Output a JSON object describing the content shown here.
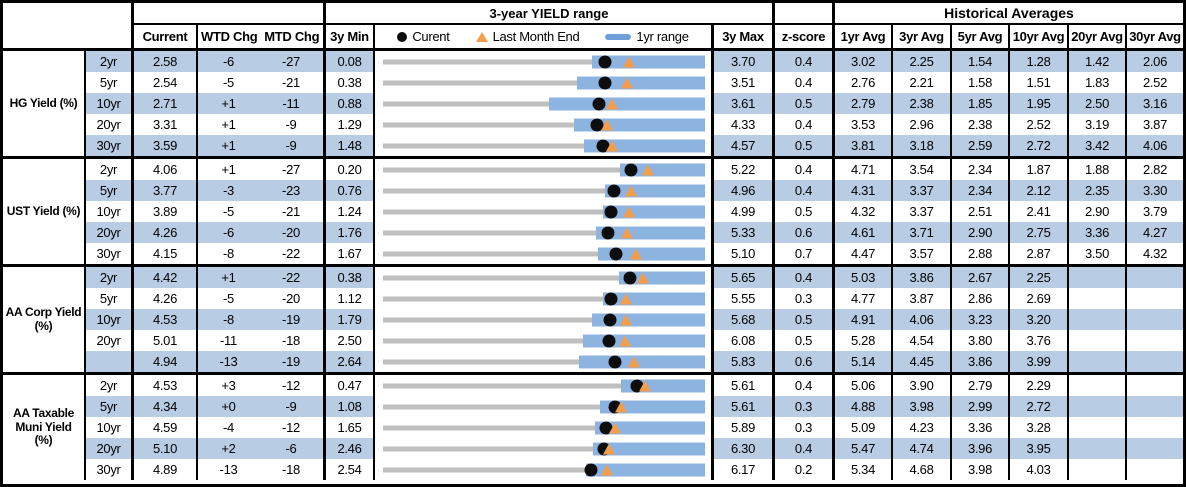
{
  "colors": {
    "stripe": "#b8cce4",
    "range_bar": "#8db3e0",
    "range_line_gray": "#bfbfbf",
    "marker_orange": "#f49d4a",
    "legend_dash_blue": "#6f9fd8",
    "marker_black": "#0d0d0d"
  },
  "header": {
    "top": {
      "yield_range": "3-year YIELD range",
      "historical_averages": "Historical Averages"
    },
    "cols": {
      "current": "Current",
      "wtd": "WTD Chg",
      "mtd": "MTD Chg",
      "min": "3y Min",
      "max": "3y Max",
      "zscore": "z-score",
      "avgs": [
        "1yr Avg",
        "3yr Avg",
        "5yr Avg",
        "10yr Avg",
        "20yr Avg",
        "30yr Avg"
      ]
    },
    "legend": {
      "current": "Curent",
      "last_month_end": "Last Month End",
      "range_1yr": "1yr range"
    }
  },
  "sections": [
    {
      "label": "HG Yield (%)",
      "rows": [
        {
          "tenor": "2yr",
          "current": "2.58",
          "wtd": "-6",
          "mtd": "-27",
          "min": "0.08",
          "max": "3.70",
          "z": "0.4",
          "avgs": [
            "3.02",
            "2.25",
            "1.54",
            "1.28",
            "1.42",
            "2.06"
          ],
          "lme": 2.85,
          "r1y_low": 2.43
        },
        {
          "tenor": "5yr",
          "current": "2.54",
          "wtd": "-5",
          "mtd": "-21",
          "min": "0.38",
          "max": "3.51",
          "z": "0.4",
          "avgs": [
            "2.76",
            "2.21",
            "1.58",
            "1.51",
            "1.83",
            "2.52"
          ],
          "lme": 2.75,
          "r1y_low": 2.27
        },
        {
          "tenor": "10yr",
          "current": "2.71",
          "wtd": "+1",
          "mtd": "-11",
          "min": "0.88",
          "max": "3.61",
          "z": "0.5",
          "avgs": [
            "2.79",
            "2.38",
            "1.85",
            "1.95",
            "2.50",
            "3.16"
          ],
          "lme": 2.82,
          "r1y_low": 2.29
        },
        {
          "tenor": "20yr",
          "current": "3.31",
          "wtd": "+1",
          "mtd": "-9",
          "min": "1.29",
          "max": "4.33",
          "z": "0.4",
          "avgs": [
            "3.53",
            "2.96",
            "2.38",
            "2.52",
            "3.19",
            "3.87"
          ],
          "lme": 3.4,
          "r1y_low": 3.09
        },
        {
          "tenor": "30yr",
          "current": "3.59",
          "wtd": "+1",
          "mtd": "-9",
          "min": "1.48",
          "max": "4.57",
          "z": "0.5",
          "avgs": [
            "3.81",
            "3.18",
            "2.59",
            "2.72",
            "3.42",
            "4.06"
          ],
          "lme": 3.68,
          "r1y_low": 3.41
        }
      ]
    },
    {
      "label": "UST Yield (%)",
      "rows": [
        {
          "tenor": "2yr",
          "current": "4.06",
          "wtd": "+1",
          "mtd": "-27",
          "min": "0.20",
          "max": "5.22",
          "z": "0.4",
          "avgs": [
            "4.71",
            "3.54",
            "2.34",
            "1.87",
            "1.88",
            "2.82"
          ],
          "lme": 4.33,
          "r1y_low": 3.89
        },
        {
          "tenor": "5yr",
          "current": "3.77",
          "wtd": "-3",
          "mtd": "-23",
          "min": "0.76",
          "max": "4.96",
          "z": "0.4",
          "avgs": [
            "4.31",
            "3.37",
            "2.34",
            "2.12",
            "2.35",
            "3.30"
          ],
          "lme": 4.0,
          "r1y_low": 3.65
        },
        {
          "tenor": "10yr",
          "current": "3.89",
          "wtd": "-5",
          "mtd": "-21",
          "min": "1.24",
          "max": "4.99",
          "z": "0.5",
          "avgs": [
            "4.32",
            "3.37",
            "2.51",
            "2.41",
            "2.90",
            "3.79"
          ],
          "lme": 4.1,
          "r1y_low": 3.8
        },
        {
          "tenor": "20yr",
          "current": "4.26",
          "wtd": "-6",
          "mtd": "-20",
          "min": "1.76",
          "max": "5.33",
          "z": "0.6",
          "avgs": [
            "4.61",
            "3.71",
            "2.90",
            "2.75",
            "3.36",
            "4.27"
          ],
          "lme": 4.46,
          "r1y_low": 4.12
        },
        {
          "tenor": "30yr",
          "current": "4.15",
          "wtd": "-8",
          "mtd": "-22",
          "min": "1.67",
          "max": "5.10",
          "z": "0.7",
          "avgs": [
            "4.47",
            "3.57",
            "2.88",
            "2.87",
            "3.50",
            "4.32"
          ],
          "lme": 4.37,
          "r1y_low": 3.96
        }
      ]
    },
    {
      "label": "AA Corp Yield\n(%)",
      "rows": [
        {
          "tenor": "2yr",
          "current": "4.42",
          "wtd": "+1",
          "mtd": "-22",
          "min": "0.38",
          "max": "5.65",
          "z": "0.4",
          "avgs": [
            "5.03",
            "3.86",
            "2.67",
            "2.25",
            "",
            ""
          ],
          "lme": 4.64,
          "r1y_low": 4.25
        },
        {
          "tenor": "5yr",
          "current": "4.26",
          "wtd": "-5",
          "mtd": "-20",
          "min": "1.12",
          "max": "5.55",
          "z": "0.3",
          "avgs": [
            "4.77",
            "3.87",
            "2.86",
            "2.69",
            "",
            ""
          ],
          "lme": 4.46,
          "r1y_low": 4.15
        },
        {
          "tenor": "10yr",
          "current": "4.53",
          "wtd": "-8",
          "mtd": "-19",
          "min": "1.79",
          "max": "5.68",
          "z": "0.5",
          "avgs": [
            "4.91",
            "4.06",
            "3.23",
            "3.20",
            "",
            ""
          ],
          "lme": 4.72,
          "r1y_low": 4.32
        },
        {
          "tenor": "20yr",
          "current": "5.01",
          "wtd": "-11",
          "mtd": "-18",
          "min": "2.50",
          "max": "6.08",
          "z": "0.5",
          "avgs": [
            "5.28",
            "4.54",
            "3.80",
            "3.76",
            "",
            ""
          ],
          "lme": 5.19,
          "r1y_low": 4.72
        },
        {
          "tenor": "",
          "current": "4.94",
          "wtd": "-13",
          "mtd": "-19",
          "min": "2.64",
          "max": "5.83",
          "z": "0.6",
          "avgs": [
            "5.14",
            "4.45",
            "3.86",
            "3.99",
            "",
            ""
          ],
          "lme": 5.13,
          "r1y_low": 4.58
        }
      ]
    },
    {
      "label": "AA Taxable\nMuni Yield\n(%)",
      "rows": [
        {
          "tenor": "2yr",
          "current": "4.53",
          "wtd": "+3",
          "mtd": "-12",
          "min": "0.47",
          "max": "5.61",
          "z": "0.4",
          "avgs": [
            "5.06",
            "3.90",
            "2.79",
            "2.29",
            "",
            ""
          ],
          "lme": 4.65,
          "r1y_low": 4.27
        },
        {
          "tenor": "5yr",
          "current": "4.34",
          "wtd": "+0",
          "mtd": "-9",
          "min": "1.08",
          "max": "5.61",
          "z": "0.3",
          "avgs": [
            "4.88",
            "3.98",
            "2.99",
            "2.72",
            "",
            ""
          ],
          "lme": 4.43,
          "r1y_low": 4.13
        },
        {
          "tenor": "10yr",
          "current": "4.59",
          "wtd": "-4",
          "mtd": "-12",
          "min": "1.65",
          "max": "5.89",
          "z": "0.3",
          "avgs": [
            "5.09",
            "4.23",
            "3.36",
            "3.28",
            "",
            ""
          ],
          "lme": 4.71,
          "r1y_low": 4.44
        },
        {
          "tenor": "20yr",
          "current": "5.10",
          "wtd": "+2",
          "mtd": "-6",
          "min": "2.46",
          "max": "6.30",
          "z": "0.4",
          "avgs": [
            "5.47",
            "4.74",
            "3.96",
            "3.95",
            "",
            ""
          ],
          "lme": 5.16,
          "r1y_low": 4.96
        },
        {
          "tenor": "30yr",
          "current": "4.89",
          "wtd": "-13",
          "mtd": "-18",
          "min": "2.54",
          "max": "6.17",
          "z": "0.2",
          "avgs": [
            "5.34",
            "4.68",
            "3.98",
            "4.03",
            "",
            ""
          ],
          "lme": 5.07,
          "r1y_low": 4.83
        }
      ]
    }
  ],
  "chart_data": {
    "type": "bullet-range",
    "title": "3-year YIELD range",
    "legend": [
      "Curent",
      "Last Month End",
      "1yr range"
    ],
    "legend_position": "top",
    "axis": "each row scaled from its 3y Min to 3y Max",
    "rows": [
      {
        "group": "HG Yield (%)",
        "tenor": "2yr",
        "y3_min": 0.08,
        "y3_max": 3.7,
        "current": 2.58,
        "last_month_end": 2.85,
        "r1y": [
          2.43,
          3.7
        ]
      },
      {
        "group": "HG Yield (%)",
        "tenor": "5yr",
        "y3_min": 0.38,
        "y3_max": 3.51,
        "current": 2.54,
        "last_month_end": 2.75,
        "r1y": [
          2.27,
          3.51
        ]
      },
      {
        "group": "HG Yield (%)",
        "tenor": "10yr",
        "y3_min": 0.88,
        "y3_max": 3.61,
        "current": 2.71,
        "last_month_end": 2.82,
        "r1y": [
          2.29,
          3.61
        ]
      },
      {
        "group": "HG Yield (%)",
        "tenor": "20yr",
        "y3_min": 1.29,
        "y3_max": 4.33,
        "current": 3.31,
        "last_month_end": 3.4,
        "r1y": [
          3.09,
          4.33
        ]
      },
      {
        "group": "HG Yield (%)",
        "tenor": "30yr",
        "y3_min": 1.48,
        "y3_max": 4.57,
        "current": 3.59,
        "last_month_end": 3.68,
        "r1y": [
          3.41,
          4.57
        ]
      },
      {
        "group": "UST Yield (%)",
        "tenor": "2yr",
        "y3_min": 0.2,
        "y3_max": 5.22,
        "current": 4.06,
        "last_month_end": 4.33,
        "r1y": [
          3.89,
          5.22
        ]
      },
      {
        "group": "UST Yield (%)",
        "tenor": "5yr",
        "y3_min": 0.76,
        "y3_max": 4.96,
        "current": 3.77,
        "last_month_end": 4.0,
        "r1y": [
          3.65,
          4.96
        ]
      },
      {
        "group": "UST Yield (%)",
        "tenor": "10yr",
        "y3_min": 1.24,
        "y3_max": 4.99,
        "current": 3.89,
        "last_month_end": 4.1,
        "r1y": [
          3.8,
          4.99
        ]
      },
      {
        "group": "UST Yield (%)",
        "tenor": "20yr",
        "y3_min": 1.76,
        "y3_max": 5.33,
        "current": 4.26,
        "last_month_end": 4.46,
        "r1y": [
          4.12,
          5.33
        ]
      },
      {
        "group": "UST Yield (%)",
        "tenor": "30yr",
        "y3_min": 1.67,
        "y3_max": 5.1,
        "current": 4.15,
        "last_month_end": 4.37,
        "r1y": [
          3.96,
          5.1
        ]
      },
      {
        "group": "AA Corp Yield (%)",
        "tenor": "2yr",
        "y3_min": 0.38,
        "y3_max": 5.65,
        "current": 4.42,
        "last_month_end": 4.64,
        "r1y": [
          4.25,
          5.65
        ]
      },
      {
        "group": "AA Corp Yield (%)",
        "tenor": "5yr",
        "y3_min": 1.12,
        "y3_max": 5.55,
        "current": 4.26,
        "last_month_end": 4.46,
        "r1y": [
          4.15,
          5.55
        ]
      },
      {
        "group": "AA Corp Yield (%)",
        "tenor": "10yr",
        "y3_min": 1.79,
        "y3_max": 5.68,
        "current": 4.53,
        "last_month_end": 4.72,
        "r1y": [
          4.32,
          5.68
        ]
      },
      {
        "group": "AA Corp Yield (%)",
        "tenor": "20yr",
        "y3_min": 2.5,
        "y3_max": 6.08,
        "current": 5.01,
        "last_month_end": 5.19,
        "r1y": [
          4.72,
          6.08
        ]
      },
      {
        "group": "AA Corp Yield (%)",
        "tenor": "30yr",
        "y3_min": 2.64,
        "y3_max": 5.83,
        "current": 4.94,
        "last_month_end": 5.13,
        "r1y": [
          4.58,
          5.83
        ]
      },
      {
        "group": "AA Taxable Muni Yield (%)",
        "tenor": "2yr",
        "y3_min": 0.47,
        "y3_max": 5.61,
        "current": 4.53,
        "last_month_end": 4.65,
        "r1y": [
          4.27,
          5.61
        ]
      },
      {
        "group": "AA Taxable Muni Yield (%)",
        "tenor": "5yr",
        "y3_min": 1.08,
        "y3_max": 5.61,
        "current": 4.34,
        "last_month_end": 4.43,
        "r1y": [
          4.13,
          5.61
        ]
      },
      {
        "group": "AA Taxable Muni Yield (%)",
        "tenor": "10yr",
        "y3_min": 1.65,
        "y3_max": 5.89,
        "current": 4.59,
        "last_month_end": 4.71,
        "r1y": [
          4.44,
          5.89
        ]
      },
      {
        "group": "AA Taxable Muni Yield (%)",
        "tenor": "20yr",
        "y3_min": 2.46,
        "y3_max": 6.3,
        "current": 5.1,
        "last_month_end": 5.16,
        "r1y": [
          4.96,
          6.3
        ]
      },
      {
        "group": "AA Taxable Muni Yield (%)",
        "tenor": "30yr",
        "y3_min": 2.54,
        "y3_max": 6.17,
        "current": 4.89,
        "last_month_end": 5.07,
        "r1y": [
          4.83,
          6.17
        ]
      }
    ]
  }
}
